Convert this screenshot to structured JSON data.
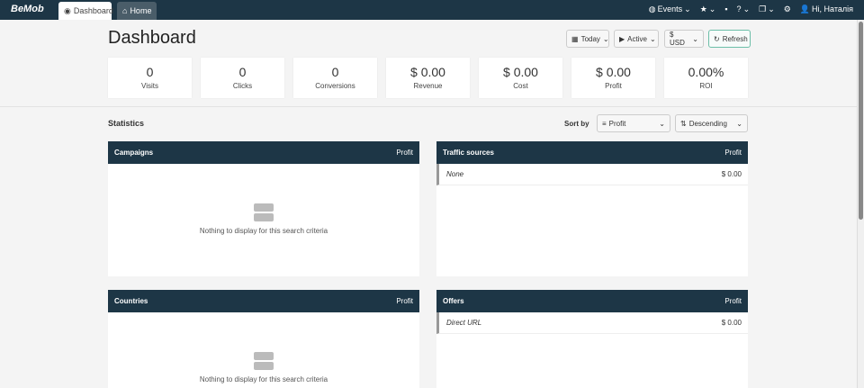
{
  "topbar": {
    "logo": "BeMob",
    "tabs": [
      {
        "label": "Dashboard",
        "active": true
      },
      {
        "label": "Home",
        "active": false
      }
    ],
    "nav": {
      "events": "Events",
      "user": "Hi, Наталія"
    }
  },
  "page": {
    "title": "Dashboard"
  },
  "controls": {
    "date": "Today",
    "status": "Active",
    "currency": "$ USD",
    "refresh": "Refresh"
  },
  "stats": [
    {
      "value": "0",
      "label": "Visits"
    },
    {
      "value": "0",
      "label": "Clicks"
    },
    {
      "value": "0",
      "label": "Conversions"
    },
    {
      "value": "$ 0.00",
      "label": "Revenue"
    },
    {
      "value": "$ 0.00",
      "label": "Cost"
    },
    {
      "value": "$ 0.00",
      "label": "Profit"
    },
    {
      "value": "0.00%",
      "label": "ROI"
    }
  ],
  "statistics": {
    "title": "Statistics",
    "sort_by_label": "Sort by",
    "sort_field": "Profit",
    "sort_order": "Descending"
  },
  "panels": {
    "campaigns": {
      "title": "Campaigns",
      "column": "Profit",
      "empty": "Nothing to display for this search criteria"
    },
    "traffic_sources": {
      "title": "Traffic sources",
      "column": "Profit",
      "rows": [
        {
          "name": "None",
          "value": "$ 0.00"
        }
      ]
    },
    "countries": {
      "title": "Countries",
      "column": "Profit",
      "empty": "Nothing to display for this search criteria"
    },
    "offers": {
      "title": "Offers",
      "column": "Profit",
      "rows": [
        {
          "name": "Direct URL",
          "value": "$ 0.00"
        }
      ]
    }
  },
  "colors": {
    "header": "#1d3646",
    "refresh_border": "#6cbfa8"
  }
}
